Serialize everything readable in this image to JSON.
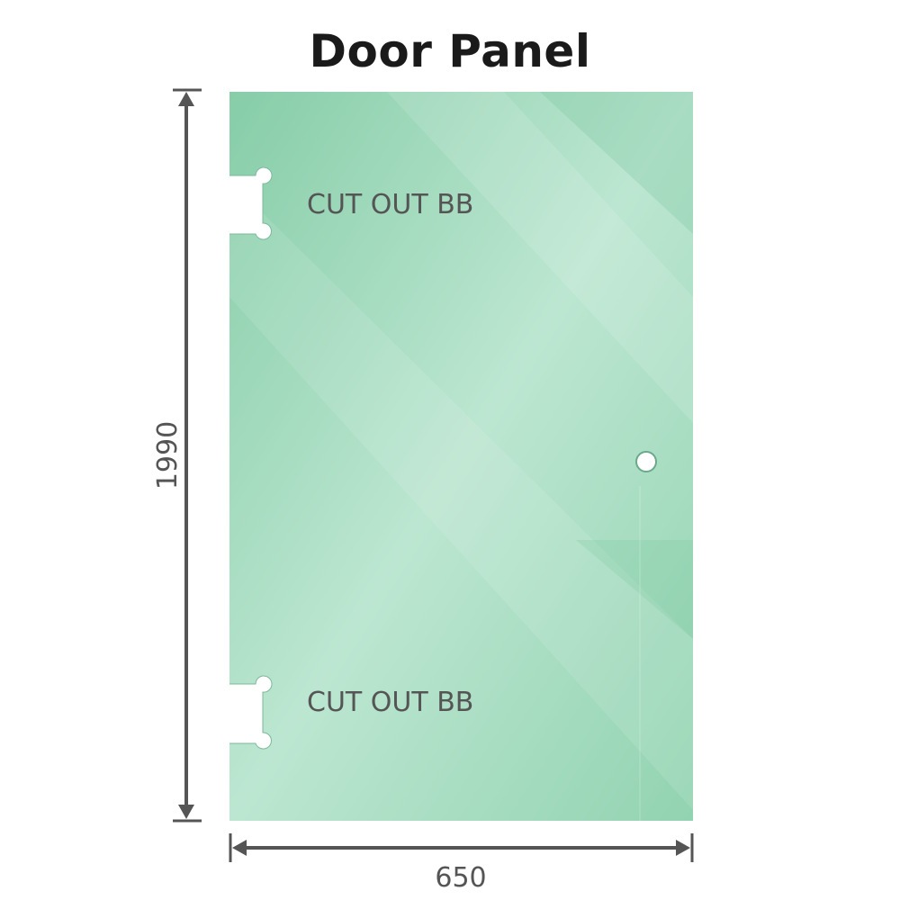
{
  "title": "Door Panel",
  "cutout_top_label": "CUT OUT BB",
  "cutout_bottom_label": "CUT OUT BB",
  "height_dimension": "1990",
  "width_dimension": "650",
  "colors": {
    "glass": "#8fd1ae",
    "glass_light": "#bde6d2",
    "dimension_line": "#555555",
    "text": "#555555"
  }
}
